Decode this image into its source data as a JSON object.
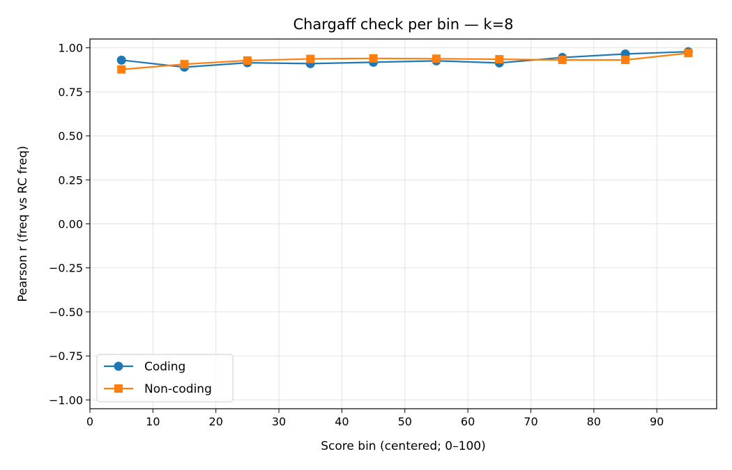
{
  "chart_data": {
    "type": "line",
    "title": "Chargaff check per bin — k=8",
    "xlabel": "Score bin (centered; 0–100)",
    "ylabel": "Pearson r (freq vs RC freq)",
    "xlim": [
      0,
      99.5
    ],
    "ylim": [
      -1.05,
      1.05
    ],
    "xticks": [
      0,
      10,
      20,
      30,
      40,
      50,
      60,
      70,
      80,
      90
    ],
    "yticks": [
      1.0,
      0.75,
      0.5,
      0.25,
      0.0,
      -0.25,
      -0.5,
      -0.75,
      -1.0
    ],
    "ytick_labels": [
      "1.00",
      "0.75",
      "0.50",
      "0.25",
      "0.00",
      "−0.25",
      "−0.50",
      "−0.75",
      "−1.00"
    ],
    "grid": true,
    "legend_position": "lower-left",
    "x": [
      5,
      15,
      25,
      35,
      45,
      55,
      65,
      75,
      85,
      95
    ],
    "series": [
      {
        "name": "Coding",
        "color": "#1f77b4",
        "marker": "circle",
        "values": [
          0.93,
          0.89,
          0.915,
          0.91,
          0.918,
          0.926,
          0.914,
          0.945,
          0.965,
          0.978
        ]
      },
      {
        "name": "Non-coding",
        "color": "#ff7f0e",
        "marker": "square",
        "values": [
          0.877,
          0.907,
          0.928,
          0.937,
          0.94,
          0.938,
          0.935,
          0.931,
          0.931,
          0.97
        ]
      }
    ]
  }
}
